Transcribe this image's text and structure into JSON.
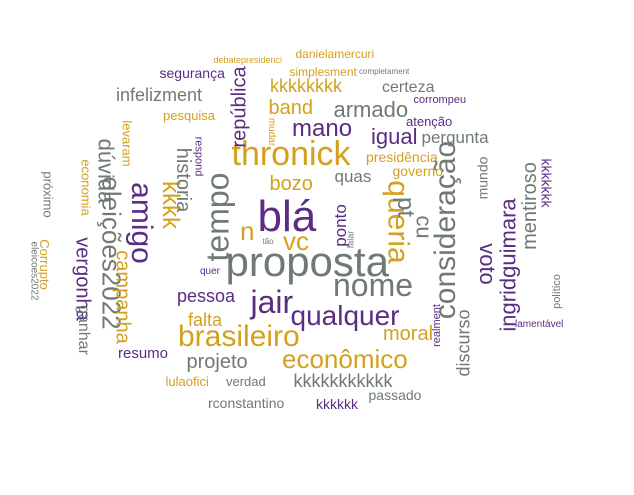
{
  "palette": {
    "purple": "#5b2c83",
    "gray": "#707a74",
    "gold": "#d4a01e"
  },
  "words": [
    {
      "text": "proposta",
      "color": "gray"
    },
    {
      "text": "blá",
      "color": "purple"
    },
    {
      "text": "nome",
      "color": "gray"
    },
    {
      "text": "thronick",
      "color": "gold"
    },
    {
      "text": "consideração",
      "color": "gray"
    },
    {
      "text": "brasileiro",
      "color": "gold"
    },
    {
      "text": "tempo",
      "color": "gray"
    },
    {
      "text": "vc",
      "color": "gold"
    },
    {
      "text": "queria",
      "color": "gold"
    },
    {
      "text": "jair",
      "color": "purple"
    },
    {
      "text": "qualquer",
      "color": "purple"
    },
    {
      "text": "amigo",
      "color": "purple"
    },
    {
      "text": "eleições2022",
      "color": "gray"
    },
    {
      "text": "kkkk",
      "color": "gold"
    },
    {
      "text": "econômico",
      "color": "gold"
    },
    {
      "text": "n",
      "color": "gold"
    },
    {
      "text": "pt",
      "color": "gray"
    },
    {
      "text": "mano",
      "color": "purple"
    },
    {
      "text": "cu",
      "color": "gray"
    },
    {
      "text": "voto",
      "color": "purple"
    },
    {
      "text": "ingridguimara",
      "color": "purple"
    },
    {
      "text": "mentiroso",
      "color": "gray"
    },
    {
      "text": "dúvida",
      "color": "gray"
    },
    {
      "text": "campanha",
      "color": "gold"
    },
    {
      "text": "vergonha",
      "color": "purple"
    },
    {
      "text": "historia",
      "color": "gray"
    },
    {
      "text": "república",
      "color": "purple"
    },
    {
      "text": "armado",
      "color": "gray"
    },
    {
      "text": "igual",
      "color": "purple"
    },
    {
      "text": "band",
      "color": "gold"
    },
    {
      "text": "bozo",
      "color": "gold"
    },
    {
      "text": "moral",
      "color": "gold"
    },
    {
      "text": "projeto",
      "color": "gray"
    },
    {
      "text": "falta",
      "color": "gold"
    },
    {
      "text": "pessoa",
      "color": "purple"
    },
    {
      "text": "infelizment",
      "color": "gray"
    },
    {
      "text": "kkkkkkkk",
      "color": "gold"
    },
    {
      "text": "certeza",
      "color": "gray"
    },
    {
      "text": "pergunta",
      "color": "gray"
    },
    {
      "text": "quas",
      "color": "gray"
    },
    {
      "text": "ponto",
      "color": "purple"
    },
    {
      "text": "kkkkkkkkkkk",
      "color": "gray"
    },
    {
      "text": "discurso",
      "color": "gray"
    },
    {
      "text": "resumo",
      "color": "purple"
    },
    {
      "text": "ganhar",
      "color": "gray"
    },
    {
      "text": "segurança",
      "color": "purple"
    },
    {
      "text": "governo",
      "color": "gold"
    },
    {
      "text": "presidência",
      "color": "gold"
    },
    {
      "text": "mundo",
      "color": "gray"
    },
    {
      "text": "kkkkkkk",
      "color": "purple"
    },
    {
      "text": "próximo",
      "color": "gray"
    },
    {
      "text": "economia",
      "color": "gold"
    },
    {
      "text": "levaram",
      "color": "gold"
    },
    {
      "text": "Corrupto",
      "color": "gold"
    },
    {
      "text": "eleicoes2022",
      "color": "gray"
    },
    {
      "text": "pesquisa",
      "color": "gold"
    },
    {
      "text": "respond",
      "color": "purple"
    },
    {
      "text": "atenção",
      "color": "purple"
    },
    {
      "text": "corrompeu",
      "color": "purple"
    },
    {
      "text": "simplesment",
      "color": "gold"
    },
    {
      "text": "completament",
      "color": "gray"
    },
    {
      "text": "danielamercuri",
      "color": "gold"
    },
    {
      "text": "debatepresidenci",
      "color": "gold"
    },
    {
      "text": "mudar",
      "color": "gold"
    },
    {
      "text": "falar",
      "color": "gray"
    },
    {
      "text": "tão",
      "color": "gray"
    },
    {
      "text": "quer",
      "color": "purple"
    },
    {
      "text": "realment",
      "color": "purple"
    },
    {
      "text": "político",
      "color": "gray"
    },
    {
      "text": "lamentável",
      "color": "purple"
    },
    {
      "text": "passado",
      "color": "gray"
    },
    {
      "text": "kkkkkk",
      "color": "purple"
    },
    {
      "text": "rconstantino",
      "color": "gray"
    },
    {
      "text": "verdad",
      "color": "gray"
    },
    {
      "text": "lulaofici",
      "color": "gold"
    },
    {
      "text": "·",
      "color": "gray"
    },
    {
      "text": "·",
      "color": "gray"
    }
  ]
}
